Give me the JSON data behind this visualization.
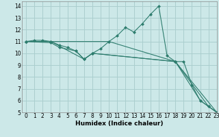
{
  "xlabel": "Humidex (Indice chaleur)",
  "bg_color": "#cce8e8",
  "grid_color": "#aacece",
  "line_color": "#2e7d6e",
  "xlim": [
    -0.5,
    23
  ],
  "ylim": [
    5,
    14.4
  ],
  "xticks": [
    0,
    1,
    2,
    3,
    4,
    5,
    6,
    7,
    8,
    9,
    10,
    11,
    12,
    13,
    14,
    15,
    16,
    17,
    18,
    19,
    20,
    21,
    22,
    23
  ],
  "yticks": [
    5,
    6,
    7,
    8,
    9,
    10,
    11,
    12,
    13,
    14
  ],
  "lines": [
    {
      "x": [
        0,
        1,
        2,
        3,
        4,
        5,
        6,
        7,
        8,
        9,
        10,
        11,
        12,
        13,
        14,
        15,
        16,
        17,
        18,
        19,
        20,
        21,
        22,
        23
      ],
      "y": [
        11,
        11.1,
        11.1,
        11.0,
        10.7,
        10.5,
        10.2,
        9.5,
        10.0,
        10.4,
        11.0,
        11.5,
        12.2,
        11.8,
        12.5,
        13.3,
        14.0,
        9.8,
        9.3,
        9.3,
        7.3,
        6.0,
        5.5,
        5.0
      ]
    },
    {
      "x": [
        0,
        3,
        10,
        18,
        23
      ],
      "y": [
        11,
        11,
        11,
        9.3,
        5.0
      ]
    },
    {
      "x": [
        0,
        3,
        7,
        8,
        18,
        21,
        23
      ],
      "y": [
        11,
        11,
        9.5,
        10.0,
        9.3,
        6.0,
        5.0
      ]
    },
    {
      "x": [
        0,
        3,
        4,
        6,
        7,
        8,
        18,
        22,
        23
      ],
      "y": [
        11,
        10.9,
        10.5,
        10.2,
        9.5,
        10.0,
        9.3,
        5.5,
        5.0
      ]
    }
  ]
}
